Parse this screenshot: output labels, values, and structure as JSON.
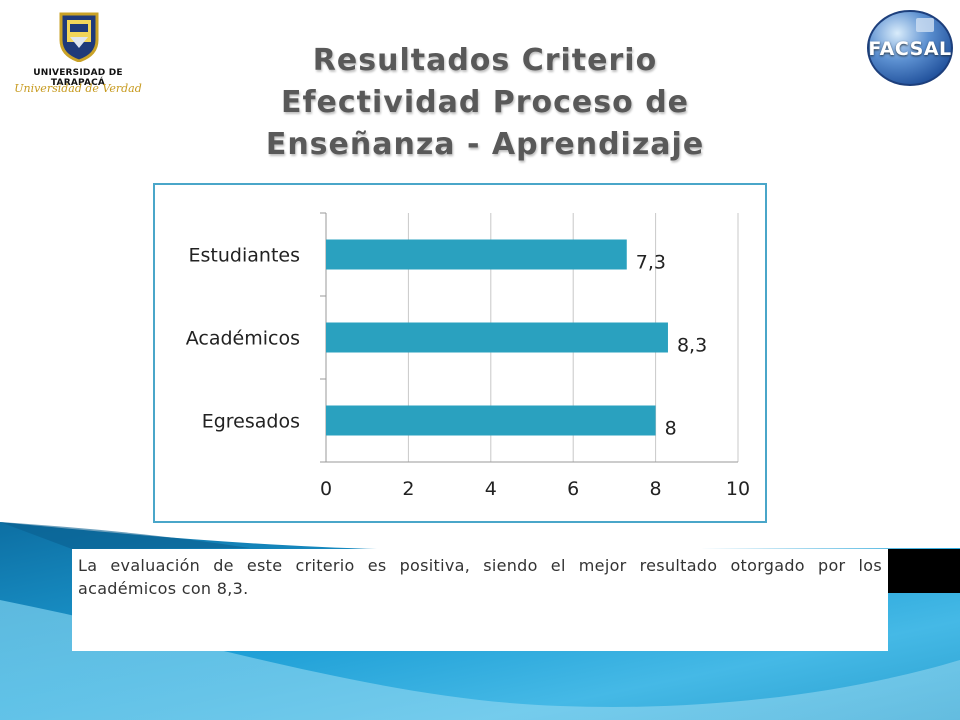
{
  "header": {
    "university_name": "UNIVERSIDAD DE TARAPACÁ",
    "university_motto": "Universidad de Verdad",
    "faculty_logo_text": "FACSAL",
    "title_lines": [
      "Resultados Criterio",
      "Efectividad Proceso de",
      "Enseñanza - Aprendizaje"
    ]
  },
  "chart_data": {
    "type": "bar",
    "orientation": "horizontal",
    "categories": [
      "Estudiantes",
      "Académicos",
      "Egresados"
    ],
    "values": [
      7.3,
      8.3,
      8
    ],
    "data_labels": [
      "7,3",
      "8,3",
      "8"
    ],
    "x_ticks": [
      "0",
      "2",
      "4",
      "6",
      "8",
      "10"
    ],
    "xlim": [
      0,
      10
    ],
    "grid": true,
    "legend": "none",
    "bar_color": "#2aa1bf",
    "title": "",
    "xlabel": "",
    "ylabel": ""
  },
  "note": {
    "text": "La evaluación de este criterio es positiva, siendo el mejor resultado otorgado por los académicos con 8,3."
  },
  "colors": {
    "title": "#595959",
    "frame": "#4aa6c9",
    "bottom_band": "#1b8fc4"
  }
}
